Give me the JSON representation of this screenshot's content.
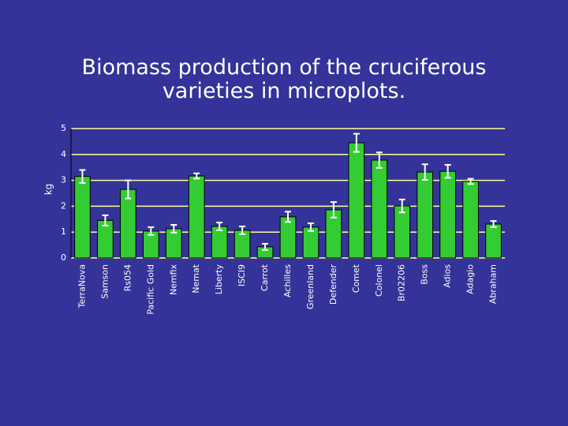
{
  "chart_data": {
    "type": "bar",
    "title": "Biomass production of the cruciferous varieties in microplots.",
    "y_label": "kg",
    "categories": [
      "TerraNova",
      "Samson",
      "Rs054",
      "Pacific Gold",
      "Nemfix",
      "Nemat",
      "Liberty",
      "ISCI9",
      "Carrot",
      "Achilles",
      "Greenland",
      "Defender",
      "Comet",
      "Colonel",
      "Br02206",
      "Boss",
      "Adios",
      "Adagio",
      "Abraham"
    ],
    "values": [
      3.15,
      1.45,
      2.65,
      1.04,
      1.13,
      3.17,
      1.22,
      1.07,
      0.43,
      1.59,
      1.19,
      1.86,
      4.45,
      3.78,
      2.01,
      3.32,
      3.35,
      2.96,
      1.31
    ],
    "errors": [
      0.25,
      0.2,
      0.35,
      0.15,
      0.15,
      0.1,
      0.15,
      0.15,
      0.12,
      0.2,
      0.15,
      0.3,
      0.35,
      0.3,
      0.25,
      0.3,
      0.25,
      0.1,
      0.12
    ],
    "color": "#33cc33",
    "ylim": [
      0,
      5
    ],
    "yticks": [
      0,
      1,
      2,
      3,
      4,
      5
    ],
    "grid": true
  }
}
